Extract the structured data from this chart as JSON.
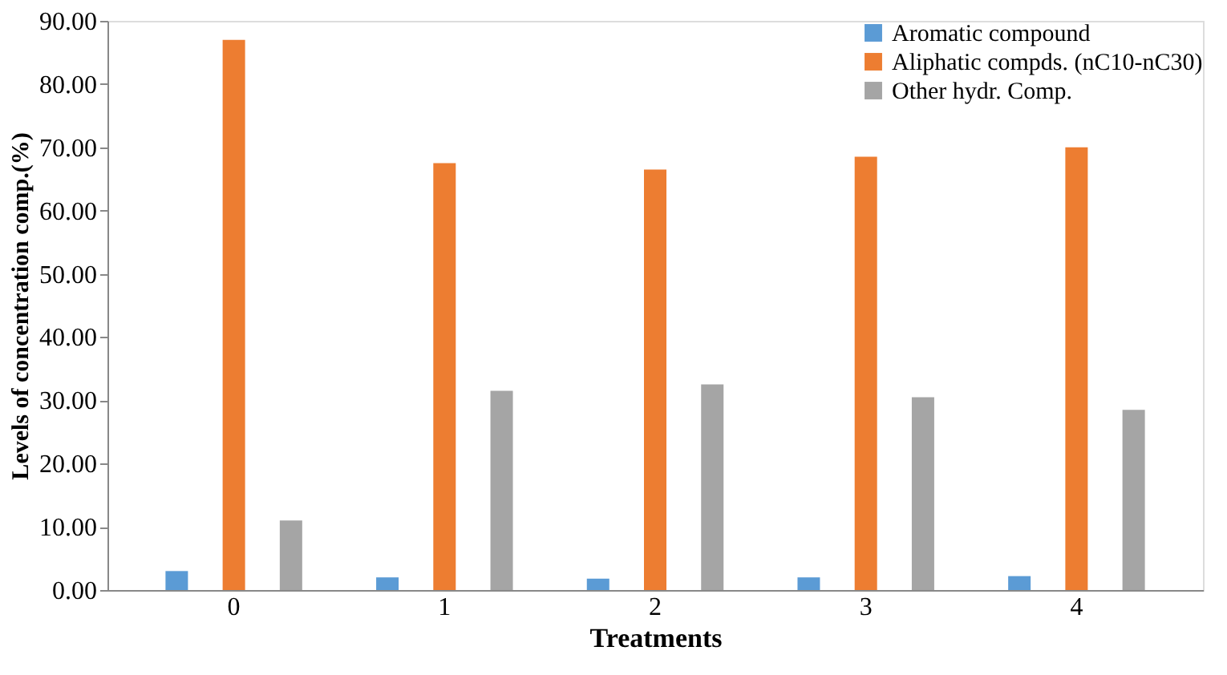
{
  "chart_data": {
    "type": "bar",
    "xlabel": "Treatments",
    "ylabel": "Levels of concentration comp.(%)",
    "categories": [
      "0",
      "1",
      "2",
      "3",
      "4"
    ],
    "series": [
      {
        "name": "Aromatic compound",
        "color": "#5b9bd5",
        "values": [
          3,
          2,
          1.8,
          2,
          2.2
        ]
      },
      {
        "name": "Aliphatic compds. (nC10-nC30)",
        "color": "#ed7d31",
        "values": [
          87,
          67.5,
          66.5,
          68.5,
          70
        ]
      },
      {
        "name": "Other hydr. Comp.",
        "color": "#a5a5a5",
        "values": [
          11,
          31.5,
          32.5,
          30.5,
          28.5
        ]
      }
    ],
    "ylim": [
      0,
      90
    ],
    "yticks": [
      {
        "value": 0,
        "label": "0.00"
      },
      {
        "value": 10,
        "label": "10.00"
      },
      {
        "value": 20,
        "label": "20.00"
      },
      {
        "value": 30,
        "label": "30.00"
      },
      {
        "value": 40,
        "label": "40.00"
      },
      {
        "value": 50,
        "label": "50.00"
      },
      {
        "value": 60,
        "label": "60.00"
      },
      {
        "value": 70,
        "label": "70.00"
      },
      {
        "value": 80,
        "label": "80.00"
      },
      {
        "value": 90,
        "label": "90.00"
      }
    ],
    "grid": false,
    "legend": "top right"
  }
}
